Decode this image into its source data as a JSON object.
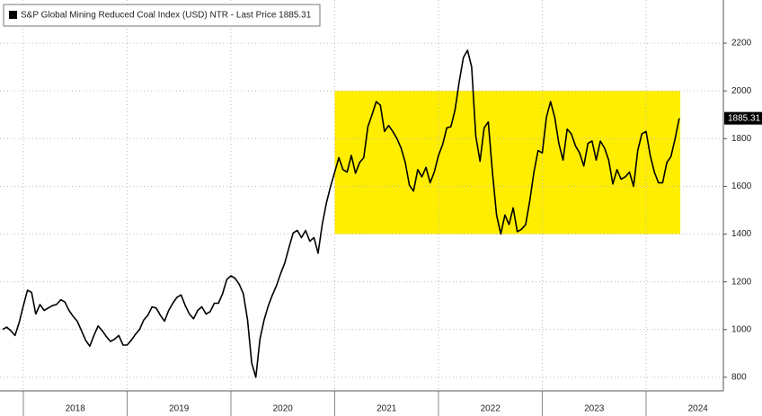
{
  "chart_data": {
    "type": "line",
    "series": [
      {
        "name": "S&P Global Mining Reduced Coal Index (USD) NTR - Last Price 1885.31",
        "color": "#000000",
        "x": [
          2017.8,
          2017.84,
          2017.88,
          2017.92,
          2017.96,
          2018.0,
          2018.04,
          2018.08,
          2018.12,
          2018.16,
          2018.2,
          2018.24,
          2018.28,
          2018.32,
          2018.36,
          2018.4,
          2018.44,
          2018.48,
          2018.52,
          2018.56,
          2018.6,
          2018.64,
          2018.68,
          2018.72,
          2018.76,
          2018.8,
          2018.84,
          2018.88,
          2018.92,
          2018.96,
          2019.0,
          2019.04,
          2019.08,
          2019.12,
          2019.16,
          2019.2,
          2019.24,
          2019.28,
          2019.32,
          2019.36,
          2019.4,
          2019.44,
          2019.48,
          2019.52,
          2019.56,
          2019.6,
          2019.64,
          2019.68,
          2019.72,
          2019.76,
          2019.8,
          2019.84,
          2019.88,
          2019.92,
          2019.96,
          2020.0,
          2020.04,
          2020.08,
          2020.12,
          2020.16,
          2020.2,
          2020.24,
          2020.28,
          2020.32,
          2020.36,
          2020.4,
          2020.44,
          2020.48,
          2020.52,
          2020.56,
          2020.6,
          2020.64,
          2020.68,
          2020.72,
          2020.76,
          2020.8,
          2020.84,
          2020.88,
          2020.92,
          2020.96,
          2021.0,
          2021.04,
          2021.08,
          2021.12,
          2021.16,
          2021.2,
          2021.24,
          2021.28,
          2021.32,
          2021.36,
          2021.4,
          2021.44,
          2021.48,
          2021.52,
          2021.56,
          2021.6,
          2021.64,
          2021.68,
          2021.72,
          2021.76,
          2021.8,
          2021.84,
          2021.88,
          2021.92,
          2021.96,
          2022.0,
          2022.04,
          2022.08,
          2022.12,
          2022.16,
          2022.2,
          2022.24,
          2022.28,
          2022.32,
          2022.36,
          2022.4,
          2022.44,
          2022.48,
          2022.52,
          2022.56,
          2022.6,
          2022.64,
          2022.68,
          2022.72,
          2022.76,
          2022.8,
          2022.84,
          2022.88,
          2022.92,
          2022.96,
          2023.0,
          2023.04,
          2023.08,
          2023.12,
          2023.16,
          2023.2,
          2023.24,
          2023.28,
          2023.32,
          2023.36,
          2023.4,
          2023.44,
          2023.48,
          2023.52,
          2023.56,
          2023.6,
          2023.64,
          2023.68,
          2023.72,
          2023.76,
          2023.8,
          2023.84,
          2023.88,
          2023.92,
          2023.96,
          2024.0,
          2024.04,
          2024.08,
          2024.12,
          2024.16,
          2024.2,
          2024.24,
          2024.28,
          2024.32
        ],
        "values": [
          1000,
          1010,
          995,
          975,
          1030,
          1100,
          1165,
          1155,
          1065,
          1105,
          1080,
          1090,
          1100,
          1105,
          1125,
          1115,
          1080,
          1055,
          1035,
          995,
          955,
          930,
          975,
          1015,
          995,
          970,
          950,
          960,
          975,
          935,
          935,
          955,
          980,
          1000,
          1040,
          1060,
          1095,
          1090,
          1060,
          1035,
          1080,
          1110,
          1135,
          1145,
          1100,
          1065,
          1045,
          1080,
          1095,
          1065,
          1075,
          1110,
          1110,
          1150,
          1210,
          1225,
          1215,
          1190,
          1150,
          1040,
          860,
          800,
          960,
          1040,
          1100,
          1145,
          1185,
          1235,
          1280,
          1345,
          1405,
          1415,
          1385,
          1415,
          1370,
          1385,
          1320,
          1440,
          1530,
          1600,
          1660,
          1720,
          1670,
          1660,
          1730,
          1655,
          1700,
          1720,
          1850,
          1900,
          1955,
          1940,
          1830,
          1855,
          1830,
          1800,
          1760,
          1700,
          1605,
          1580,
          1670,
          1640,
          1680,
          1615,
          1660,
          1730,
          1775,
          1845,
          1850,
          1920,
          2040,
          2140,
          2170,
          2100,
          1810,
          1705,
          1845,
          1870,
          1660,
          1480,
          1400,
          1480,
          1440,
          1510,
          1410,
          1420,
          1440,
          1540,
          1660,
          1750,
          1740,
          1890,
          1955,
          1890,
          1780,
          1710,
          1840,
          1820,
          1770,
          1740,
          1685,
          1780,
          1790,
          1710,
          1790,
          1760,
          1710,
          1610,
          1670,
          1630,
          1640,
          1660,
          1600,
          1750,
          1820,
          1830,
          1730,
          1660,
          1615,
          1615,
          1700,
          1725,
          1800,
          1885.31
        ]
      }
    ],
    "xlim": [
      2017.775,
      2024.745
    ],
    "xticks": [
      {
        "value": 2018.5,
        "label": "2018"
      },
      {
        "value": 2019.5,
        "label": "2019"
      },
      {
        "value": 2020.5,
        "label": "2020"
      },
      {
        "value": 2021.5,
        "label": "2021"
      },
      {
        "value": 2022.5,
        "label": "2022"
      },
      {
        "value": 2023.5,
        "label": "2023"
      },
      {
        "value": 2024.5,
        "label": "2024"
      }
    ],
    "ylim": [
      743,
      2381
    ],
    "yticks": [
      800,
      1000,
      1200,
      1400,
      1600,
      1800,
      2000,
      2200
    ],
    "highlight": {
      "x": [
        2021,
        2024.33
      ],
      "y": [
        1400,
        2000
      ],
      "color": "#ffee00"
    },
    "grid": true,
    "legend": "upper left",
    "background": "#ffffff"
  }
}
